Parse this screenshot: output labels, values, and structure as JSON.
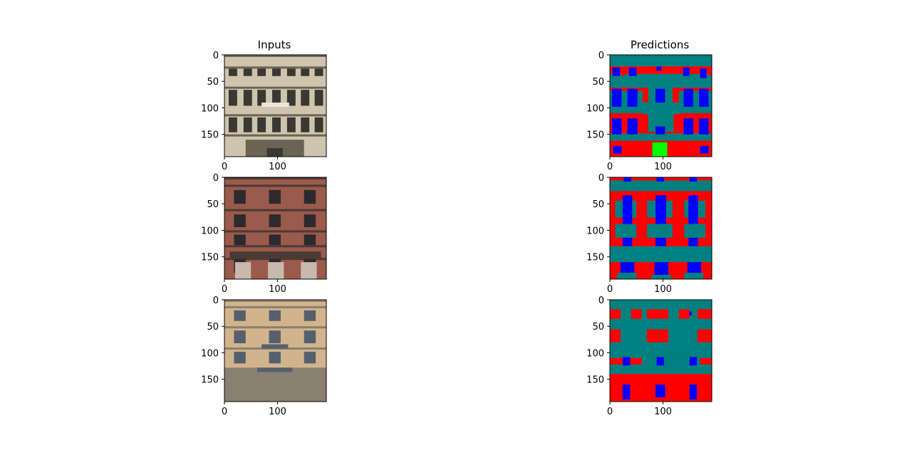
{
  "figure": {
    "left_title": "Inputs",
    "right_title": "Predictions"
  },
  "colors": {
    "wall": "#ff0000",
    "window": "#0000ff",
    "balcony_molding": "#008080",
    "door": "#00ff00",
    "axes_frame": "#000000"
  },
  "chart_data": [
    {
      "type": "image",
      "panel": "Inputs row 1",
      "title": "Inputs",
      "description_kind": "facade photo",
      "xticks": [
        0,
        100
      ],
      "yticks": [
        0,
        50,
        100,
        150
      ],
      "xlim": [
        0,
        192
      ],
      "ylim": [
        192,
        0
      ],
      "palette": {
        "bg": "#cfc4ad",
        "floor_band": "#6b6355",
        "window": "#3a3832",
        "accent": "#ece6d8"
      }
    },
    {
      "type": "image",
      "panel": "Inputs row 2",
      "xticks": [
        0,
        100
      ],
      "yticks": [
        0,
        50,
        100,
        150
      ],
      "xlim": [
        0,
        192
      ],
      "ylim": [
        192,
        0
      ],
      "palette": {
        "bg": "#9a5a4c",
        "floor_band": "#4c3a34",
        "window": "#2c2a2e",
        "accent": "#c9b9ad"
      }
    },
    {
      "type": "image",
      "panel": "Inputs row 3",
      "xticks": [
        0,
        100
      ],
      "yticks": [
        0,
        50,
        100,
        150
      ],
      "xlim": [
        0,
        192
      ],
      "ylim": [
        192,
        0
      ],
      "palette": {
        "bg": "#d2b48c",
        "floor_band": "#8a8070",
        "window": "#55606c",
        "accent": "#e8d6b6"
      }
    },
    {
      "type": "heatmap",
      "panel": "Predictions row 1",
      "title": "Predictions",
      "xticks": [
        0,
        100
      ],
      "yticks": [
        0,
        50,
        100,
        150
      ],
      "xlim": [
        0,
        192
      ],
      "ylim": [
        192,
        0
      ],
      "background": "wall",
      "regions": [
        {
          "cls": "balcony_molding",
          "x": [
            0,
            192
          ],
          "y": [
            0,
            22
          ]
        },
        {
          "cls": "balcony_molding",
          "x": [
            0,
            192
          ],
          "y": [
            36,
            62
          ]
        },
        {
          "cls": "balcony_molding",
          "x": [
            0,
            192
          ],
          "y": [
            62,
            110
          ]
        },
        {
          "cls": "wall",
          "x": [
            0,
            62
          ],
          "y": [
            62,
            68
          ]
        },
        {
          "cls": "wall",
          "x": [
            130,
            192
          ],
          "y": [
            62,
            68
          ]
        },
        {
          "cls": "wall",
          "x": [
            0,
            192
          ],
          "y": [
            22,
            28
          ]
        },
        {
          "cls": "balcony_molding",
          "x": [
            62,
            130
          ],
          "y": [
            62,
            135
          ]
        },
        {
          "cls": "balcony_molding",
          "x": [
            0,
            192
          ],
          "y": [
            148,
            162
          ]
        },
        {
          "cls": "wall",
          "x": [
            62,
            130
          ],
          "y": [
            112,
            135
          ]
        },
        {
          "cls": "balcony_molding",
          "x": [
            72,
            120
          ],
          "y": [
            112,
            145
          ]
        },
        {
          "cls": "window",
          "x": [
            5,
            19
          ],
          "y": [
            24,
            40
          ]
        },
        {
          "cls": "window",
          "x": [
            36,
            50
          ],
          "y": [
            24,
            40
          ]
        },
        {
          "cls": "window",
          "x": [
            88,
            97
          ],
          "y": [
            22,
            30
          ]
        },
        {
          "cls": "window",
          "x": [
            138,
            150
          ],
          "y": [
            24,
            40
          ]
        },
        {
          "cls": "window",
          "x": [
            170,
            182
          ],
          "y": [
            26,
            44
          ]
        },
        {
          "cls": "wall",
          "x": [
            22,
            28
          ],
          "y": [
            24,
            40
          ]
        },
        {
          "cls": "wall",
          "x": [
            187,
            192
          ],
          "y": [
            26,
            40
          ]
        },
        {
          "cls": "window",
          "x": [
            4,
            22
          ],
          "y": [
            64,
            98
          ]
        },
        {
          "cls": "window",
          "x": [
            33,
            52
          ],
          "y": [
            64,
            98
          ]
        },
        {
          "cls": "window",
          "x": [
            86,
            104
          ],
          "y": [
            64,
            90
          ]
        },
        {
          "cls": "window",
          "x": [
            139,
            157
          ],
          "y": [
            64,
            98
          ]
        },
        {
          "cls": "window",
          "x": [
            168,
            186
          ],
          "y": [
            64,
            98
          ]
        },
        {
          "cls": "wall",
          "x": [
            62,
            72
          ],
          "y": [
            62,
            90
          ]
        },
        {
          "cls": "wall",
          "x": [
            118,
            130
          ],
          "y": [
            62,
            90
          ]
        },
        {
          "cls": "window",
          "x": [
            4,
            22
          ],
          "y": [
            120,
            150
          ]
        },
        {
          "cls": "window",
          "x": [
            33,
            52
          ],
          "y": [
            120,
            150
          ]
        },
        {
          "cls": "window",
          "x": [
            139,
            157
          ],
          "y": [
            120,
            150
          ]
        },
        {
          "cls": "window",
          "x": [
            168,
            186
          ],
          "y": [
            120,
            150
          ]
        },
        {
          "cls": "window",
          "x": [
            86,
            104
          ],
          "y": [
            135,
            150
          ]
        },
        {
          "cls": "door",
          "x": [
            80,
            108
          ],
          "y": [
            165,
            192
          ]
        },
        {
          "cls": "window",
          "x": [
            6,
            22
          ],
          "y": [
            172,
            186
          ]
        },
        {
          "cls": "window",
          "x": [
            170,
            186
          ],
          "y": [
            172,
            186
          ]
        }
      ]
    },
    {
      "type": "heatmap",
      "panel": "Predictions row 2",
      "xticks": [
        0,
        100
      ],
      "yticks": [
        0,
        50,
        100,
        150
      ],
      "xlim": [
        0,
        192
      ],
      "ylim": [
        192,
        0
      ],
      "background": "wall",
      "regions": [
        {
          "cls": "balcony_molding",
          "x": [
            0,
            192
          ],
          "y": [
            6,
            26
          ]
        },
        {
          "cls": "wall",
          "x": [
            0,
            192
          ],
          "y": [
            0,
            6
          ]
        },
        {
          "cls": "window",
          "x": [
            26,
            40
          ],
          "y": [
            0,
            8
          ]
        },
        {
          "cls": "window",
          "x": [
            88,
            102
          ],
          "y": [
            0,
            8
          ]
        },
        {
          "cls": "window",
          "x": [
            150,
            164
          ],
          "y": [
            0,
            8
          ]
        },
        {
          "cls": "balcony_molding",
          "x": [
            10,
            50
          ],
          "y": [
            44,
            76
          ]
        },
        {
          "cls": "balcony_molding",
          "x": [
            70,
            118
          ],
          "y": [
            44,
            76
          ]
        },
        {
          "cls": "balcony_molding",
          "x": [
            140,
            180
          ],
          "y": [
            44,
            76
          ]
        },
        {
          "cls": "window",
          "x": [
            24,
            42
          ],
          "y": [
            34,
            88
          ]
        },
        {
          "cls": "window",
          "x": [
            86,
            106
          ],
          "y": [
            34,
            88
          ]
        },
        {
          "cls": "window",
          "x": [
            148,
            166
          ],
          "y": [
            34,
            88
          ]
        },
        {
          "cls": "balcony_molding",
          "x": [
            10,
            50
          ],
          "y": [
            88,
            114
          ]
        },
        {
          "cls": "balcony_molding",
          "x": [
            70,
            118
          ],
          "y": [
            88,
            114
          ]
        },
        {
          "cls": "balcony_molding",
          "x": [
            140,
            180
          ],
          "y": [
            88,
            114
          ]
        },
        {
          "cls": "window",
          "x": [
            24,
            42
          ],
          "y": [
            114,
            130
          ]
        },
        {
          "cls": "window",
          "x": [
            86,
            106
          ],
          "y": [
            114,
            130
          ]
        },
        {
          "cls": "window",
          "x": [
            148,
            166
          ],
          "y": [
            114,
            130
          ]
        },
        {
          "cls": "balcony_molding",
          "x": [
            0,
            192
          ],
          "y": [
            130,
            160
          ]
        },
        {
          "cls": "window",
          "x": [
            20,
            46
          ],
          "y": [
            160,
            180
          ]
        },
        {
          "cls": "window",
          "x": [
            84,
            110
          ],
          "y": [
            160,
            184
          ]
        },
        {
          "cls": "window",
          "x": [
            146,
            172
          ],
          "y": [
            160,
            180
          ]
        },
        {
          "cls": "balcony_molding",
          "x": [
            14,
            50
          ],
          "y": [
            180,
            192
          ]
        },
        {
          "cls": "balcony_molding",
          "x": [
            78,
            116
          ],
          "y": [
            184,
            192
          ]
        },
        {
          "cls": "balcony_molding",
          "x": [
            140,
            176
          ],
          "y": [
            180,
            192
          ]
        }
      ]
    },
    {
      "type": "heatmap",
      "panel": "Predictions row 3",
      "xticks": [
        0,
        100
      ],
      "yticks": [
        0,
        50,
        100,
        150
      ],
      "xlim": [
        0,
        192
      ],
      "ylim": [
        192,
        0
      ],
      "background": "wall",
      "regions": [
        {
          "cls": "balcony_molding",
          "x": [
            0,
            192
          ],
          "y": [
            0,
            18
          ]
        },
        {
          "cls": "balcony_molding",
          "x": [
            0,
            192
          ],
          "y": [
            36,
            56
          ]
        },
        {
          "cls": "balcony_molding",
          "x": [
            20,
            70
          ],
          "y": [
            18,
            80
          ]
        },
        {
          "cls": "balcony_molding",
          "x": [
            110,
            165
          ],
          "y": [
            18,
            80
          ]
        },
        {
          "cls": "balcony_molding",
          "x": [
            0,
            192
          ],
          "y": [
            80,
            110
          ]
        },
        {
          "cls": "balcony_molding",
          "x": [
            60,
            170
          ],
          "y": [
            110,
            135
          ]
        },
        {
          "cls": "balcony_molding",
          "x": [
            0,
            192
          ],
          "y": [
            122,
            140
          ]
        },
        {
          "cls": "wall",
          "x": [
            0,
            20
          ],
          "y": [
            56,
            80
          ]
        },
        {
          "cls": "wall",
          "x": [
            165,
            192
          ],
          "y": [
            56,
            80
          ]
        },
        {
          "cls": "wall",
          "x": [
            70,
            110
          ],
          "y": [
            56,
            80
          ]
        },
        {
          "cls": "wall",
          "x": [
            40,
            60
          ],
          "y": [
            18,
            36
          ]
        },
        {
          "cls": "wall",
          "x": [
            130,
            150
          ],
          "y": [
            18,
            36
          ]
        },
        {
          "cls": "wall",
          "x": [
            0,
            20
          ],
          "y": [
            18,
            36
          ]
        },
        {
          "cls": "wall",
          "x": [
            170,
            192
          ],
          "y": [
            18,
            36
          ]
        },
        {
          "cls": "window",
          "x": [
            24,
            38
          ],
          "y": [
            108,
            124
          ]
        },
        {
          "cls": "window",
          "x": [
            88,
            102
          ],
          "y": [
            108,
            124
          ]
        },
        {
          "cls": "window",
          "x": [
            150,
            164
          ],
          "y": [
            108,
            124
          ]
        },
        {
          "cls": "window",
          "x": [
            24,
            38
          ],
          "y": [
            160,
            188
          ]
        },
        {
          "cls": "window",
          "x": [
            86,
            104
          ],
          "y": [
            160,
            184
          ]
        },
        {
          "cls": "window",
          "x": [
            150,
            164
          ],
          "y": [
            160,
            188
          ]
        },
        {
          "cls": "window",
          "x": [
            150,
            154
          ],
          "y": [
            22,
            30
          ]
        }
      ]
    }
  ]
}
